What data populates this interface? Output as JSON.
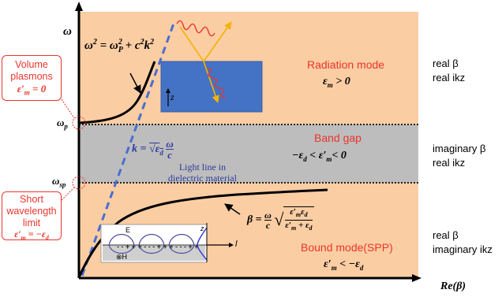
{
  "axes": {
    "y_label": "ω",
    "x_label": "Re(β)",
    "omega_p": "ωp",
    "omega_sp": "ωsp"
  },
  "regions": {
    "radiation": {
      "title": "Radiation mode",
      "condition": "εm > 0",
      "right_line1": "real β",
      "right_line2": "real ikz"
    },
    "band_gap": {
      "title": "Band gap",
      "condition": "−εd < ε′m< 0",
      "right_line1": "imaginary β",
      "right_line2": "real ikz"
    },
    "bound": {
      "title": "Bound mode(SPP)",
      "condition": "ε′m < −εd",
      "right_line1": "real β",
      "right_line2": "imaginary  ikz"
    }
  },
  "callouts": {
    "volume": {
      "line1": "Volume",
      "line2": "plasmons",
      "eq": "ε′m = 0"
    },
    "short": {
      "line1": "Short",
      "line2": "wavelength",
      "line3": "limit",
      "eq": "ε′m = −εd"
    }
  },
  "equations": {
    "dispersion": "ω² = ωP² + c²k²",
    "light_line": "k = √εd ω/c",
    "light_line_caption1": "Light line in",
    "light_line_caption2": "dielectric material",
    "spp": "β = (ω/c)√(ε′mεd/(ε′m + εd))"
  },
  "insets": {
    "slab_axis": "z",
    "spp_e": "E",
    "spp_h": "H",
    "spp_z": "z",
    "spp_x": "l"
  },
  "colors": {
    "peach": "#fbcda3",
    "gap": "#bdbdbd",
    "slab": "#4472c4",
    "red": "#e8352c",
    "navy": "#2e3b9c",
    "dashed_line": "#4a6fd0"
  }
}
